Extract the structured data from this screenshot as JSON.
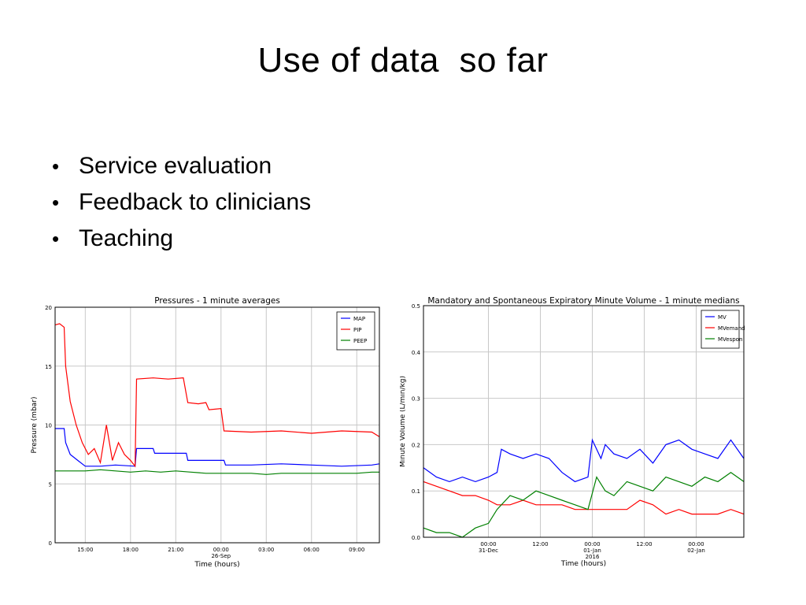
{
  "slide": {
    "title": "Use of data  so far",
    "bullets": [
      "Service evaluation",
      "Feedback to clinicians",
      "Teaching"
    ]
  },
  "chart_data": [
    {
      "type": "line",
      "title": "Pressures - 1 minute averages",
      "xlabel": "Time (hours)",
      "ylabel": "Pressure (mbar)",
      "ylim": [
        0,
        20
      ],
      "yticks": [
        "0",
        "5",
        "10",
        "15",
        "20"
      ],
      "xlim": [
        13.0,
        34.5
      ],
      "xticks": [
        {
          "x": 15,
          "label": "15:00"
        },
        {
          "x": 18,
          "label": "18:00"
        },
        {
          "x": 21,
          "label": "21:00"
        },
        {
          "x": 24,
          "label": "00:00",
          "sub": "26-Sep"
        },
        {
          "x": 27,
          "label": "03:00"
        },
        {
          "x": 30,
          "label": "06:00"
        },
        {
          "x": 33,
          "label": "09:00"
        }
      ],
      "grid": true,
      "legend": "top-right",
      "series": [
        {
          "name": "MAP",
          "color": "#0000ff",
          "x": [
            13.0,
            13.6,
            13.7,
            14.0,
            14.5,
            15.0,
            16.0,
            17.0,
            18.3,
            18.4,
            19.5,
            19.6,
            21.7,
            21.8,
            24.2,
            24.3,
            26.0,
            28.0,
            30.0,
            32.0,
            34.0,
            34.5
          ],
          "y": [
            9.7,
            9.7,
            8.5,
            7.5,
            7.0,
            6.5,
            6.5,
            6.6,
            6.5,
            8.0,
            8.0,
            7.6,
            7.6,
            7.0,
            7.0,
            6.6,
            6.6,
            6.7,
            6.6,
            6.5,
            6.6,
            6.7
          ]
        },
        {
          "name": "PIP",
          "color": "#ff0000",
          "x": [
            13.0,
            13.3,
            13.6,
            13.7,
            14.0,
            14.4,
            14.8,
            15.2,
            15.6,
            16.0,
            16.4,
            16.8,
            17.2,
            17.6,
            18.0,
            18.3,
            18.4,
            19.5,
            20.5,
            21.5,
            21.8,
            22.5,
            23.0,
            23.2,
            24.0,
            24.2,
            26.0,
            28.0,
            30.0,
            32.0,
            34.0,
            34.5
          ],
          "y": [
            18.5,
            18.6,
            18.3,
            15.0,
            12.0,
            10.0,
            8.5,
            7.5,
            8.0,
            6.8,
            10.0,
            7.0,
            8.5,
            7.5,
            7.0,
            6.5,
            13.9,
            14.0,
            13.9,
            14.0,
            11.9,
            11.8,
            11.9,
            11.3,
            11.4,
            9.5,
            9.4,
            9.5,
            9.3,
            9.5,
            9.4,
            9.0
          ]
        },
        {
          "name": "PEEP",
          "color": "#008000",
          "x": [
            13.0,
            14.0,
            15.0,
            16.0,
            17.0,
            18.0,
            19.0,
            20.0,
            21.0,
            22.0,
            23.0,
            24.0,
            25.0,
            26.0,
            27.0,
            28.0,
            29.0,
            30.0,
            31.0,
            32.0,
            33.0,
            34.0,
            34.5
          ],
          "y": [
            6.1,
            6.1,
            6.1,
            6.2,
            6.1,
            6.0,
            6.1,
            6.0,
            6.1,
            6.0,
            5.9,
            5.9,
            5.9,
            5.9,
            5.8,
            5.9,
            5.9,
            5.9,
            5.9,
            5.9,
            5.9,
            6.0,
            6.0
          ]
        }
      ]
    },
    {
      "type": "line",
      "title": "Mandatory and Spontaneous Expiratory Minute Volume - 1 minute medians",
      "xlabel": "Time (hours)",
      "ylabel": "Minute Volume (L/min/kg)",
      "ylim": [
        0.0,
        0.5
      ],
      "yticks": [
        "0.0",
        "0.1",
        "0.2",
        "0.3",
        "0.4",
        "0.5"
      ],
      "xlim": [
        -15,
        59
      ],
      "xticks": [
        {
          "x": 0,
          "label": "00:00",
          "sub": "31-Dec"
        },
        {
          "x": 12,
          "label": "12:00"
        },
        {
          "x": 24,
          "label": "00:00",
          "sub": "01-Jan",
          "sub2": "2016"
        },
        {
          "x": 36,
          "label": "12:00"
        },
        {
          "x": 48,
          "label": "00:00",
          "sub": "02-Jan"
        }
      ],
      "grid": true,
      "legend": "top-right",
      "series": [
        {
          "name": "MV",
          "color": "#0000ff",
          "x": [
            -15,
            -12,
            -9,
            -6,
            -3,
            0,
            2,
            3,
            5,
            8,
            11,
            14,
            17,
            20,
            23,
            24,
            26,
            27,
            29,
            32,
            35,
            38,
            41,
            44,
            47,
            50,
            53,
            56,
            59
          ],
          "y": [
            0.15,
            0.13,
            0.12,
            0.13,
            0.12,
            0.13,
            0.14,
            0.19,
            0.18,
            0.17,
            0.18,
            0.17,
            0.14,
            0.12,
            0.13,
            0.21,
            0.17,
            0.2,
            0.18,
            0.17,
            0.19,
            0.16,
            0.2,
            0.21,
            0.19,
            0.18,
            0.17,
            0.21,
            0.17
          ]
        },
        {
          "name": "MVemand",
          "color": "#ff0000",
          "x": [
            -15,
            -12,
            -9,
            -6,
            -3,
            0,
            2,
            5,
            8,
            11,
            14,
            17,
            20,
            23,
            26,
            29,
            32,
            35,
            38,
            41,
            44,
            47,
            50,
            53,
            56,
            59
          ],
          "y": [
            0.12,
            0.11,
            0.1,
            0.09,
            0.09,
            0.08,
            0.07,
            0.07,
            0.08,
            0.07,
            0.07,
            0.07,
            0.06,
            0.06,
            0.06,
            0.06,
            0.06,
            0.08,
            0.07,
            0.05,
            0.06,
            0.05,
            0.05,
            0.05,
            0.06,
            0.05
          ]
        },
        {
          "name": "MVespon",
          "color": "#008000",
          "x": [
            -15,
            -12,
            -9,
            -6,
            -3,
            0,
            2,
            5,
            8,
            11,
            14,
            17,
            20,
            23,
            25,
            27,
            29,
            32,
            35,
            38,
            41,
            44,
            47,
            50,
            53,
            56,
            59
          ],
          "y": [
            0.02,
            0.01,
            0.01,
            0.0,
            0.02,
            0.03,
            0.06,
            0.09,
            0.08,
            0.1,
            0.09,
            0.08,
            0.07,
            0.06,
            0.13,
            0.1,
            0.09,
            0.12,
            0.11,
            0.1,
            0.13,
            0.12,
            0.11,
            0.13,
            0.12,
            0.14,
            0.12
          ]
        }
      ]
    }
  ]
}
